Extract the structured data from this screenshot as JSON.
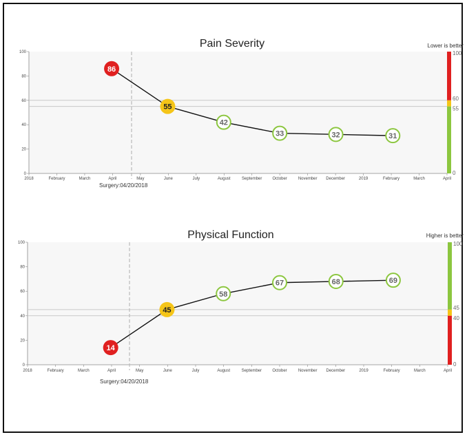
{
  "chart_data": [
    {
      "type": "line",
      "title": "Pain Severity",
      "note": "Lower is better",
      "ylim": [
        0,
        100
      ],
      "yticks": [
        0,
        20,
        40,
        60,
        80,
        100
      ],
      "x_tick_labels": [
        "2018",
        "February",
        "March",
        "April",
        "May",
        "June",
        "July",
        "August",
        "September",
        "October",
        "November",
        "December",
        "2019",
        "February",
        "March",
        "April"
      ],
      "surgery_label": "Surgery:04/20/2018",
      "thresholds": [
        60,
        55
      ],
      "scale_labels": [
        "100",
        "60",
        "55",
        "0"
      ],
      "scale_bands": [
        {
          "from": 60,
          "to": 100,
          "color": "#e02020"
        },
        {
          "from": 55,
          "to": 60,
          "color": "#f5c518"
        },
        {
          "from": 0,
          "to": 55,
          "color": "#8cc63f"
        }
      ],
      "series": [
        {
          "points": [
            {
              "x": "2018-04-01",
              "y": 86,
              "label": "86",
              "status": "bad"
            },
            {
              "x": "2018-06-01",
              "y": 55,
              "label": "55",
              "status": "mid"
            },
            {
              "x": "2018-08-01",
              "y": 42,
              "label": "42",
              "status": "good"
            },
            {
              "x": "2018-10-01",
              "y": 33,
              "label": "33",
              "status": "good"
            },
            {
              "x": "2018-12-01",
              "y": 32,
              "label": "32",
              "status": "good"
            },
            {
              "x": "2019-02-01",
              "y": 31,
              "label": "31",
              "status": "good"
            }
          ]
        }
      ]
    },
    {
      "type": "line",
      "title": "Physical Function",
      "note": "Higher is better",
      "ylim": [
        0,
        100
      ],
      "yticks": [
        0,
        20,
        40,
        60,
        80,
        100
      ],
      "x_tick_labels": [
        "2018",
        "February",
        "March",
        "April",
        "May",
        "June",
        "July",
        "August",
        "September",
        "October",
        "November",
        "December",
        "2019",
        "February",
        "March",
        "April"
      ],
      "surgery_label": "Surgery:04/20/2018",
      "thresholds": [
        45,
        40
      ],
      "scale_labels": [
        "100",
        "45",
        "40",
        "0"
      ],
      "scale_bands": [
        {
          "from": 45,
          "to": 100,
          "color": "#8cc63f"
        },
        {
          "from": 40,
          "to": 45,
          "color": "#f5c518"
        },
        {
          "from": 0,
          "to": 40,
          "color": "#e02020"
        }
      ],
      "series": [
        {
          "points": [
            {
              "x": "2018-04-01",
              "y": 14,
              "label": "14",
              "status": "bad"
            },
            {
              "x": "2018-06-01",
              "y": 45,
              "label": "45",
              "status": "mid"
            },
            {
              "x": "2018-08-01",
              "y": 58,
              "label": "58",
              "status": "good"
            },
            {
              "x": "2018-10-01",
              "y": 67,
              "label": "67",
              "status": "good"
            },
            {
              "x": "2018-12-01",
              "y": 68,
              "label": "68",
              "status": "good"
            },
            {
              "x": "2019-02-01",
              "y": 69,
              "label": "69",
              "status": "good"
            }
          ]
        }
      ]
    }
  ],
  "colors": {
    "bad": "#e02020",
    "mid": "#f5c518",
    "good": "#8cc63f",
    "plot_bg": "#f7f7f7"
  }
}
